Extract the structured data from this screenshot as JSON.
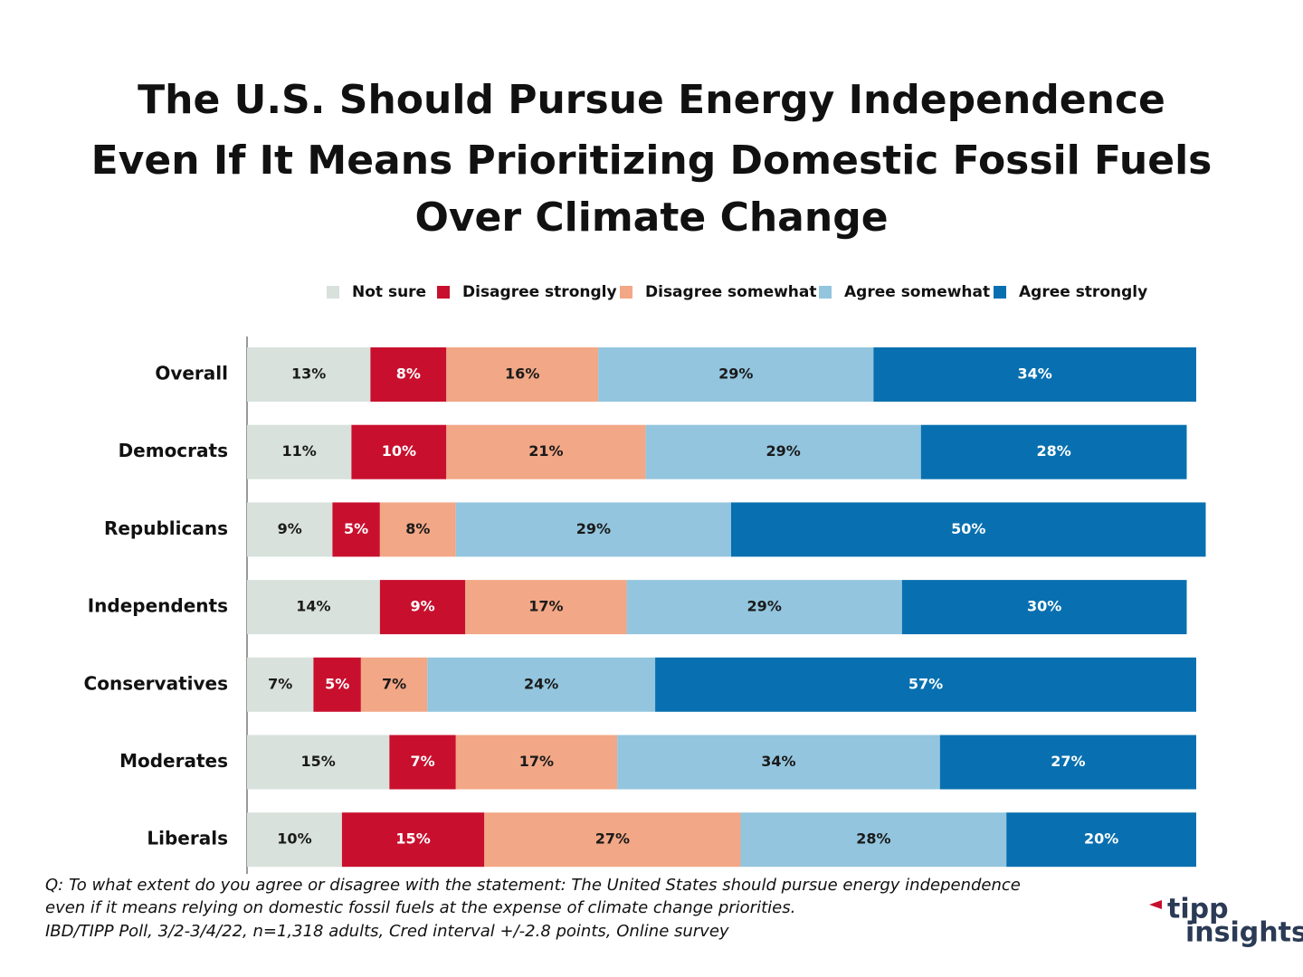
{
  "chart_data": {
    "type": "stacked-bar-horizontal",
    "title": [
      "The U.S. Should Pursue Energy Independence",
      "Even If It Means Prioritizing Domestic Fossil Fuels",
      "Over Climate Change"
    ],
    "categories": [
      "Overall",
      "Democrats",
      "Republicans",
      "Independents",
      "Conservatives",
      "Moderates",
      "Liberals"
    ],
    "series": [
      {
        "name": "Not sure",
        "color": "#d8e1dc",
        "label_color": "#1a1a1a",
        "values": [
          13,
          11,
          9,
          14,
          7,
          15,
          10
        ],
        "value_labels": [
          "13%",
          "11%",
          "9%",
          "14%",
          "7%",
          "15%",
          "10%"
        ]
      },
      {
        "name": "Disagree strongly",
        "color": "#c8102e",
        "label_color": "#ffffff",
        "values": [
          8,
          10,
          5,
          9,
          5,
          7,
          15
        ],
        "value_labels": [
          "8%",
          "10%",
          "5%",
          "9%",
          "5%",
          "7%",
          "15%"
        ]
      },
      {
        "name": "Disagree somewhat",
        "color": "#f2a786",
        "label_color": "#1a1a1a",
        "values": [
          16,
          21,
          8,
          17,
          7,
          17,
          27
        ],
        "value_labels": [
          "16%",
          "21%",
          "8%",
          "17%",
          "7%",
          "17%",
          "27%"
        ]
      },
      {
        "name": "Agree somewhat",
        "color": "#93c5de",
        "label_color": "#1a1a1a",
        "values": [
          29,
          29,
          29,
          29,
          24,
          34,
          28
        ],
        "value_labels": [
          "29%",
          "29%",
          "29%",
          "29%",
          "24%",
          "34%",
          "28%"
        ]
      },
      {
        "name": "Agree strongly",
        "color": "#0870b0",
        "label_color": "#ffffff",
        "values": [
          34,
          28,
          50,
          30,
          57,
          27,
          20
        ],
        "value_labels": [
          "34%",
          "28%",
          "50%",
          "30%",
          "57%",
          "27%",
          "20%"
        ]
      }
    ],
    "notes": [
      "Q:  To what extent do you agree or disagree with the statement: The United States should pursue energy independence",
      "even if it means relying on domestic fossil fuels at the expense of climate change priorities.",
      "IBD/TIPP Poll, 3/2-3/4/22, n=1,318 adults, Cred interval +/-2.8 points, Online survey"
    ],
    "logo": [
      "tipp",
      "insights"
    ]
  }
}
